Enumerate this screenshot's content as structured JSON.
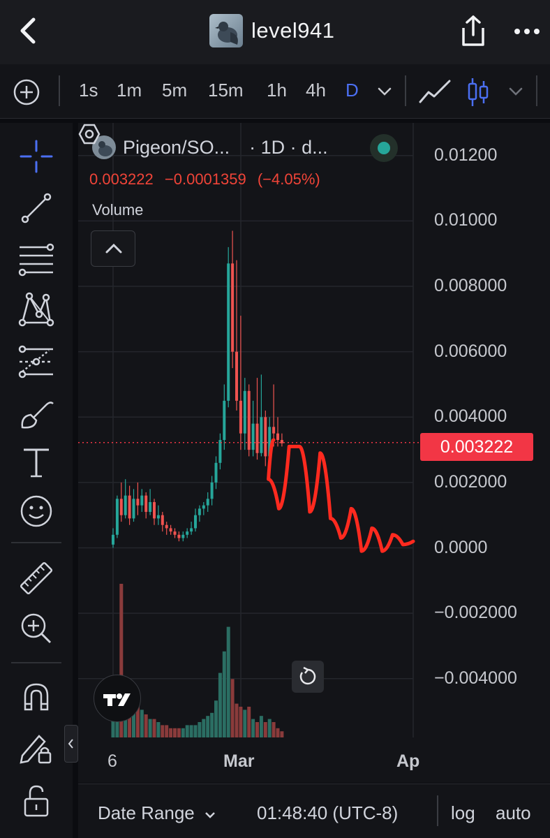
{
  "header": {
    "username": "level941",
    "icons": {
      "back": "chevron-left-icon",
      "share": "share-icon",
      "more": "more-horizontal-icon"
    }
  },
  "toolbar": {
    "timeframes": [
      "1s",
      "1m",
      "5m",
      "15m",
      "1h",
      "4h",
      "D"
    ],
    "active_timeframe": "D"
  },
  "legend": {
    "symbol": "Pigeon/SO...",
    "interval": "· 1D · d...",
    "price": "0.003222",
    "change": "−0.0001359",
    "change_pct": "(−4.05%)",
    "volume_label": "Volume"
  },
  "chart_data": {
    "type": "candlestick",
    "y_tick_labels": [
      "0.01200",
      "0.01000",
      "0.008000",
      "0.006000",
      "0.004000",
      "0.002000",
      "0.0000",
      "−0.002000",
      "−0.004000"
    ],
    "y_ticks": [
      0.012,
      0.01,
      0.008,
      0.006,
      0.004,
      0.002,
      0,
      -0.002,
      -0.004
    ],
    "ylim": [
      -0.0058,
      0.013
    ],
    "x_tick_labels": [
      "6",
      "Mar",
      "Ap"
    ],
    "last_price": 0.003222,
    "last_price_label": "0.003222",
    "up_color": "#26a69a",
    "down_color": "#ef5350",
    "drawing_color": "#ff2a1f",
    "candles": [
      [
        0.0001,
        0.0004,
        0.0,
        0.0006
      ],
      [
        0.0004,
        0.0015,
        0.0003,
        0.0016
      ],
      [
        0.0015,
        0.001,
        0.0008,
        0.002
      ],
      [
        0.001,
        0.0016,
        0.0009,
        0.0021
      ],
      [
        0.0016,
        0.0009,
        0.0007,
        0.0019
      ],
      [
        0.0009,
        0.0015,
        0.0008,
        0.0018
      ],
      [
        0.0015,
        0.0013,
        0.001,
        0.002
      ],
      [
        0.0013,
        0.0016,
        0.0011,
        0.0018
      ],
      [
        0.0016,
        0.0011,
        0.0009,
        0.0017
      ],
      [
        0.0011,
        0.0014,
        0.001,
        0.0018
      ],
      [
        0.0014,
        0.0009,
        0.0007,
        0.0015
      ],
      [
        0.0009,
        0.001,
        0.0007,
        0.0013
      ],
      [
        0.001,
        0.0007,
        0.0005,
        0.0011
      ],
      [
        0.0007,
        0.0006,
        0.0004,
        0.0008
      ],
      [
        0.0006,
        0.0005,
        0.0004,
        0.0007
      ],
      [
        0.0005,
        0.0004,
        0.0003,
        0.0006
      ],
      [
        0.0004,
        0.0003,
        0.0002,
        0.0005
      ],
      [
        0.0003,
        0.0004,
        0.0002,
        0.0005
      ],
      [
        0.0004,
        0.0005,
        0.0003,
        0.0006
      ],
      [
        0.0005,
        0.0006,
        0.0004,
        0.0008
      ],
      [
        0.0006,
        0.001,
        0.0005,
        0.0012
      ],
      [
        0.001,
        0.0012,
        0.0008,
        0.0013
      ],
      [
        0.0012,
        0.0013,
        0.001,
        0.0014
      ],
      [
        0.0013,
        0.0015,
        0.0011,
        0.0017
      ],
      [
        0.0015,
        0.002,
        0.0013,
        0.0022
      ],
      [
        0.002,
        0.0026,
        0.0018,
        0.0028
      ],
      [
        0.0026,
        0.0033,
        0.0024,
        0.0035
      ],
      [
        0.0033,
        0.0045,
        0.003,
        0.005
      ],
      [
        0.0045,
        0.0087,
        0.0043,
        0.0092
      ],
      [
        0.0087,
        0.006,
        0.0055,
        0.0097
      ],
      [
        0.006,
        0.0045,
        0.0042,
        0.0088
      ],
      [
        0.0045,
        0.0035,
        0.003,
        0.0071
      ],
      [
        0.0035,
        0.0048,
        0.003,
        0.0052
      ],
      [
        0.0048,
        0.003,
        0.0028,
        0.005
      ],
      [
        0.003,
        0.0038,
        0.0028,
        0.0045
      ],
      [
        0.0038,
        0.0029,
        0.0027,
        0.0052
      ],
      [
        0.0029,
        0.004,
        0.0028,
        0.0053
      ],
      [
        0.004,
        0.0028,
        0.0025,
        0.0042
      ],
      [
        0.0028,
        0.0037,
        0.0026,
        0.004
      ],
      [
        0.0037,
        0.0035,
        0.0031,
        0.005
      ],
      [
        0.0035,
        0.0033,
        0.0031,
        0.004
      ],
      [
        0.0033,
        0.0032,
        0.0031,
        0.0035
      ]
    ],
    "volume": [
      0.15,
      0.35,
      1.0,
      0.32,
      0.28,
      0.24,
      0.22,
      0.18,
      0.15,
      0.12,
      0.12,
      0.1,
      0.08,
      0.08,
      0.06,
      0.06,
      0.06,
      0.06,
      0.08,
      0.08,
      0.08,
      0.1,
      0.12,
      0.14,
      0.16,
      0.24,
      0.42,
      0.56,
      0.72,
      0.38,
      0.22,
      0.2,
      0.18,
      0.2,
      0.12,
      0.1,
      0.14,
      0.1,
      0.12,
      0.1,
      0.06,
      0.04
    ],
    "drawing_path": [
      [
        0.0032,
        0.0033
      ],
      [
        0.0031,
        0.0021
      ],
      [
        0.0033,
        0.0012
      ],
      [
        0.0035,
        0.0031
      ],
      [
        0.0037,
        0.0031
      ],
      [
        0.0039,
        0.0011
      ],
      [
        0.0041,
        0.0029
      ],
      [
        0.0043,
        0.0009
      ],
      [
        0.0045,
        0.0003
      ],
      [
        0.0047,
        0.0012
      ],
      [
        0.0049,
        -0.0001
      ],
      [
        0.0051,
        0.0006
      ],
      [
        0.0053,
        -0.0001
      ],
      [
        0.0055,
        0.0004
      ],
      [
        0.0057,
        0.0001
      ],
      [
        0.0059,
        0.0002
      ]
    ]
  },
  "bottom_bar": {
    "date_range": "Date Range",
    "time": "01:48:40 (UTC-8)",
    "log": "log",
    "auto": "auto"
  }
}
